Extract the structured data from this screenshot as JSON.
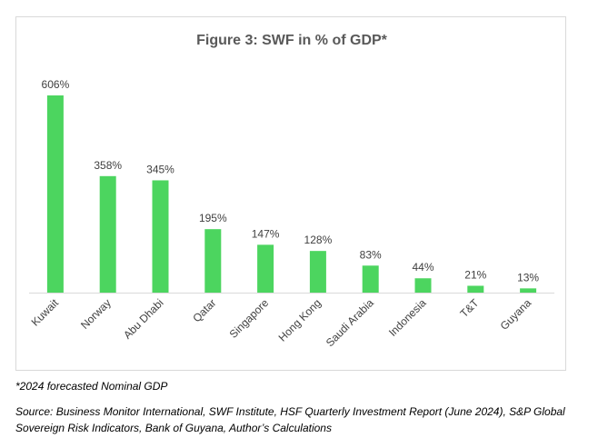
{
  "chart_data": {
    "type": "bar",
    "title": "Figure 3: SWF in % of GDP*",
    "xlabel": "",
    "ylabel": "",
    "categories": [
      "Kuwait",
      "Norway",
      "Abu Dhabi",
      "Qatar",
      "Singapore",
      "Hong Kong",
      "Saudi Arabia",
      "Indonesia",
      "T&T",
      "Guyana"
    ],
    "values": [
      606,
      358,
      345,
      195,
      147,
      128,
      83,
      44,
      21,
      13
    ],
    "data_labels": [
      "606%",
      "358%",
      "345%",
      "195%",
      "147%",
      "128%",
      "83%",
      "44%",
      "21%",
      "13%"
    ],
    "ylim": [
      0,
      606
    ],
    "grid": false,
    "legend": "none",
    "bar_color": "#4cd55f",
    "axis_color": "#d9d9d9"
  },
  "footnotes": {
    "gdp_note": "*2024 forecasted Nominal GDP",
    "source": "Source: Business Monitor International, SWF Institute, HSF Quarterly Investment Report (June 2024), S&P Global Sovereign Risk Indicators, Bank of Guyana, Author’s Calculations"
  }
}
